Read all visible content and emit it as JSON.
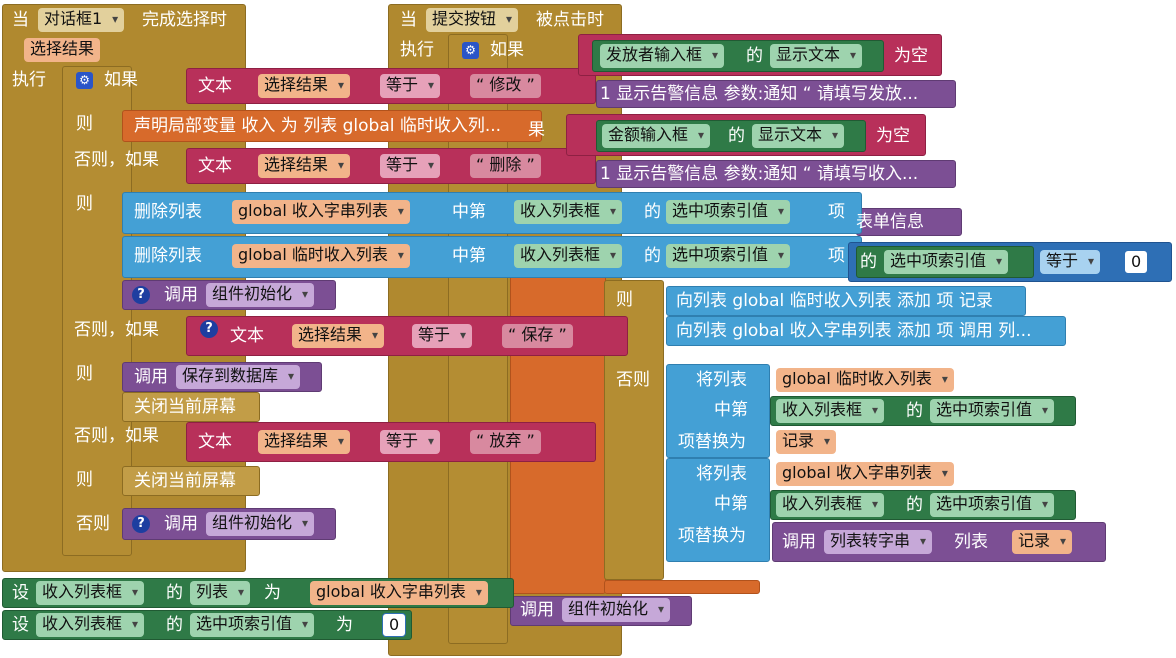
{
  "left_event": {
    "when": "当",
    "component": "对话框1",
    "event": "完成选择时",
    "param": "选择结果",
    "do": "执行",
    "if": "如果",
    "then": "则",
    "elseif": "否则，如果",
    "else": "否则",
    "text": "文本",
    "choice_var": "选择结果",
    "equals": "等于",
    "cond1_str": "“ 修改 ”",
    "cond2_str": "“ 删除 ”",
    "cond3_str": "“ 保存 ”",
    "cond4_str": "“ 放弃 ”",
    "local_var": "声明局部变量 收入 为 列表 global 临时收入列...",
    "remove_list": "删除列表",
    "list1": "global 收入字串列表",
    "list2": "global 临时收入列表",
    "in_index": "中第",
    "listbox": "收入列表框",
    "of": "的",
    "selected_index": "选中项索引值",
    "item": "项",
    "call": "调用",
    "init_proc": "组件初始化",
    "save_proc": "保存到数据库",
    "close_screen": "关闭当前屏幕"
  },
  "right_event": {
    "when": "当",
    "component": "提交按钮",
    "event": "被点击时",
    "do": "执行",
    "if": "如果",
    "publisher_input": "发放者输入框",
    "of": "的",
    "display_text": "显示文本",
    "is_empty": "为空",
    "alert1": "1 显示告警信息 参数:通知  “ 请填写发放...",
    "else_if_partial": "果",
    "amount_input": "金额输入框",
    "alert2": "1 显示告警信息 参数:通知  “ 请填写收入...",
    "form_info_partial": "表单信息",
    "selected_index": "选中项索引值",
    "equals": "等于",
    "zero": "0",
    "then": "则",
    "else": "否则",
    "add_item1": "向列表 global 临时收入列表 添加 项 记录",
    "add_item2": "向列表 global 收入字串列表 添加 项 调用 列...",
    "set_list": "将列表",
    "list_temp": "global 临时收入列表",
    "list_str": "global 收入字串列表",
    "in_index": "中第",
    "listbox": "收入列表框",
    "replace_with": "项替换为",
    "record": "记录",
    "call": "调用",
    "list_to_csv": "列表转字串",
    "list_label": "列表",
    "init_proc": "组件初始化"
  },
  "bottom": {
    "set": "设",
    "listbox": "收入列表框",
    "of": "的",
    "list_prop": "列表",
    "to": "为",
    "list_str": "global 收入字串列表",
    "selected_index": "选中项索引值",
    "zero": "0"
  }
}
